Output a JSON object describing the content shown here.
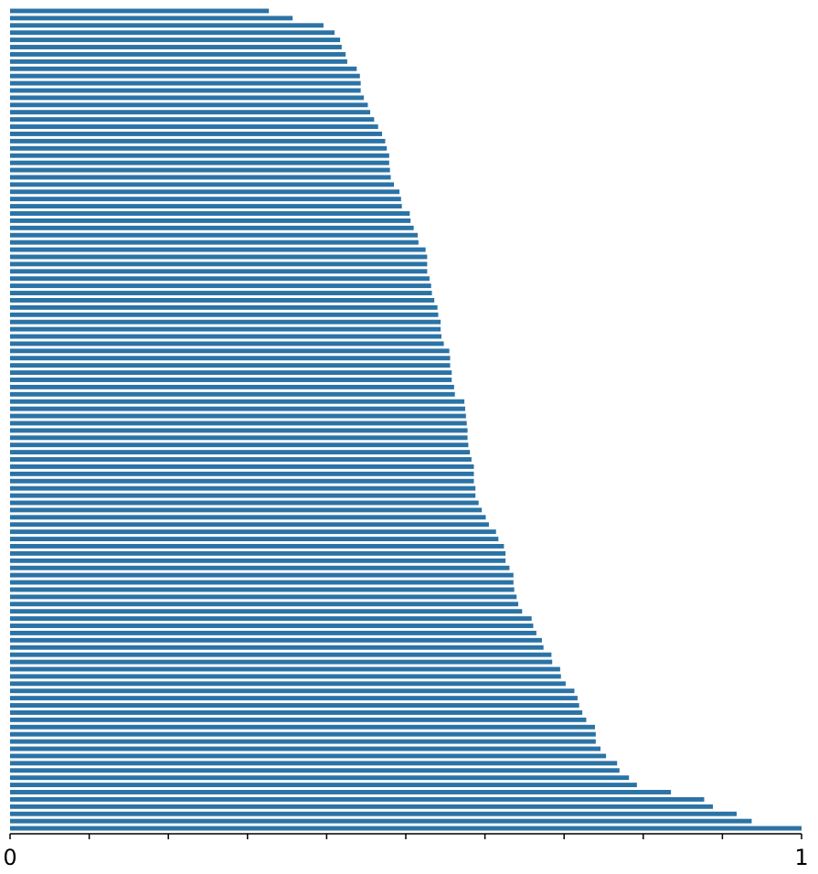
{
  "colors": {
    "bar": "#2b73a6",
    "axis": "#000000",
    "background": "#ffffff"
  },
  "chart_data": {
    "type": "bar",
    "orientation": "horizontal",
    "title": "",
    "xlabel": "",
    "ylabel": "",
    "xlim": [
      0,
      1
    ],
    "grid": false,
    "legend": "none",
    "x_tick_labels": [
      "0",
      "1"
    ],
    "minor_tick_values": [
      0.1,
      0.2,
      0.3,
      0.4,
      0.5,
      0.6,
      0.7,
      0.8,
      0.9
    ],
    "values": [
      0.327,
      0.357,
      0.396,
      0.41,
      0.417,
      0.419,
      0.424,
      0.426,
      0.438,
      0.442,
      0.443,
      0.443,
      0.447,
      0.452,
      0.455,
      0.46,
      0.465,
      0.47,
      0.474,
      0.476,
      0.479,
      0.479,
      0.48,
      0.481,
      0.485,
      0.492,
      0.494,
      0.495,
      0.505,
      0.506,
      0.51,
      0.515,
      0.516,
      0.525,
      0.527,
      0.527,
      0.527,
      0.53,
      0.532,
      0.533,
      0.536,
      0.54,
      0.541,
      0.544,
      0.544,
      0.545,
      0.548,
      0.555,
      0.556,
      0.556,
      0.558,
      0.558,
      0.561,
      0.562,
      0.574,
      0.575,
      0.576,
      0.577,
      0.578,
      0.578,
      0.579,
      0.581,
      0.583,
      0.586,
      0.586,
      0.586,
      0.588,
      0.588,
      0.592,
      0.596,
      0.601,
      0.605,
      0.614,
      0.617,
      0.624,
      0.626,
      0.626,
      0.631,
      0.636,
      0.636,
      0.637,
      0.64,
      0.642,
      0.647,
      0.659,
      0.661,
      0.665,
      0.672,
      0.674,
      0.684,
      0.685,
      0.695,
      0.696,
      0.702,
      0.713,
      0.717,
      0.719,
      0.723,
      0.728,
      0.739,
      0.74,
      0.74,
      0.746,
      0.753,
      0.767,
      0.77,
      0.782,
      0.792,
      0.835,
      0.877,
      0.888,
      0.918,
      0.937,
      1.0
    ]
  }
}
